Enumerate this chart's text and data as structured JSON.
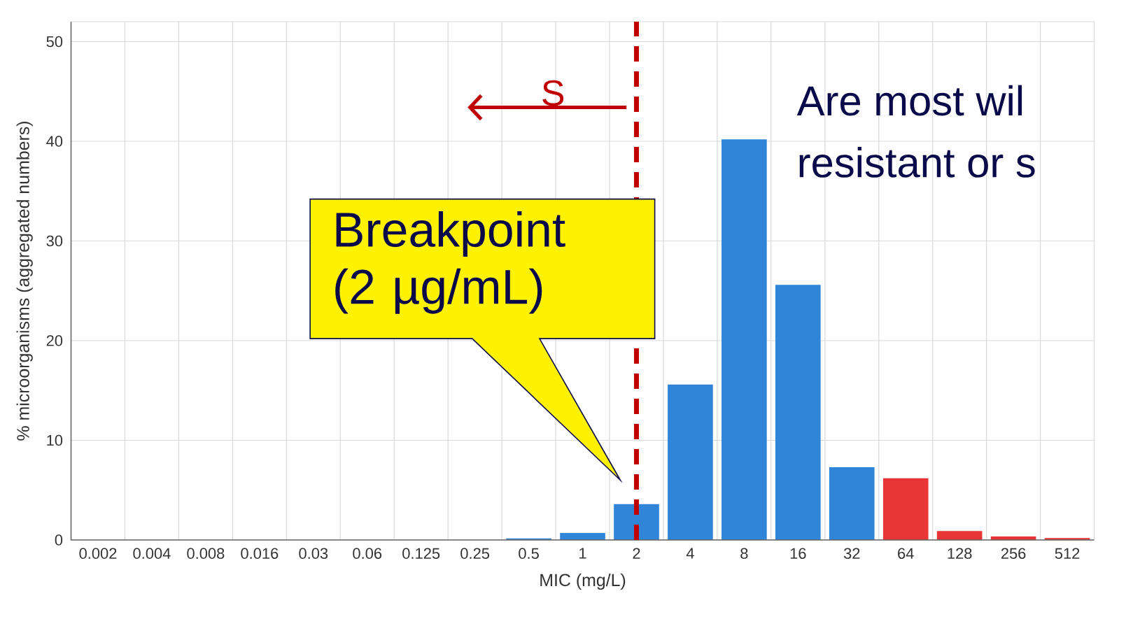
{
  "chart_data": {
    "type": "bar",
    "xlabel": "MIC (mg/L)",
    "ylabel": "% microorganisms (aggregated numbers)",
    "categories": [
      "0.002",
      "0.004",
      "0.008",
      "0.016",
      "0.03",
      "0.06",
      "0.125",
      "0.25",
      "0.5",
      "1",
      "2",
      "4",
      "8",
      "16",
      "32",
      "64",
      "128",
      "256",
      "512"
    ],
    "values": [
      0,
      0,
      0,
      0,
      0,
      0,
      0,
      0,
      0.15,
      0.7,
      3.6,
      15.6,
      40.2,
      25.6,
      7.3,
      6.2,
      0.9,
      0.35,
      0.2
    ],
    "colors": [
      "#3085d9",
      "#3085d9",
      "#3085d9",
      "#3085d9",
      "#3085d9",
      "#3085d9",
      "#3085d9",
      "#3085d9",
      "#3085d9",
      "#3085d9",
      "#3085d9",
      "#3085d9",
      "#3085d9",
      "#3085d9",
      "#3085d9",
      "#e83535",
      "#e83535",
      "#e83535",
      "#e83535"
    ],
    "ylim": [
      0,
      52
    ],
    "yticks": [
      0,
      10,
      20,
      30,
      40,
      50
    ],
    "grid": true,
    "ref_lines": [
      {
        "axis": "x",
        "value": "2",
        "color": "#c00000",
        "line_style": "dashed"
      }
    ],
    "annotations": [
      "Breakpoint (2 µg/mL)",
      "S",
      "Are most wil",
      "resistant or s"
    ]
  }
}
